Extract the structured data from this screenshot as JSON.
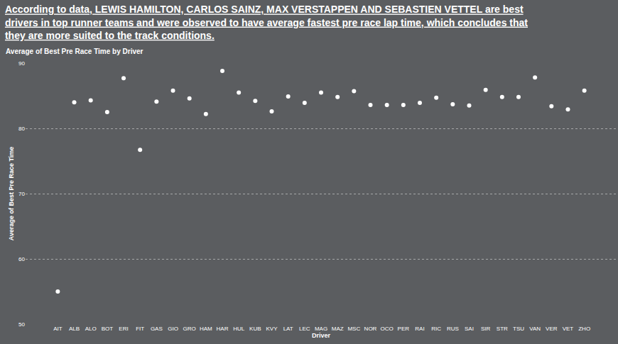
{
  "chart_data": {
    "type": "scatter",
    "title": "Average of Best Pre Race Time by Driver",
    "annotations": [
      "According to data, LEWIS HAMILTON, CARLOS SAINZ, MAX VERSTAPPEN AND SEBASTIEN VETTEL are best\ndrivers in top runner teams and were observed to have average fastest pre race lap time, which concludes that\nthey are more suited to the track conditions."
    ],
    "x_label": "Driver",
    "y_label": "Average of Best Pre Race Time",
    "categories": [
      "AIT",
      "ALB",
      "ALO",
      "BOT",
      "ERI",
      "FIT",
      "GAS",
      "GIO",
      "GRO",
      "HAM",
      "HAR",
      "HUL",
      "KUB",
      "KVY",
      "LAT",
      "LEC",
      "MAG",
      "MAZ",
      "MSC",
      "NOR",
      "OCO",
      "PER",
      "RAI",
      "RIC",
      "RUS",
      "SAI",
      "SIR",
      "STR",
      "TSU",
      "VAN",
      "VER",
      "VET",
      "ZHO"
    ],
    "values": [
      55.0,
      84.0,
      84.3,
      82.5,
      87.7,
      76.7,
      84.1,
      85.8,
      84.6,
      82.2,
      88.8,
      85.5,
      84.2,
      82.6,
      84.9,
      83.9,
      85.5,
      84.8,
      85.7,
      83.6,
      83.6,
      83.6,
      83.9,
      84.7,
      83.7,
      83.5,
      85.9,
      84.8,
      84.8,
      87.8,
      83.4,
      82.9,
      85.8
    ],
    "color": "#ffffff",
    "ylim": [
      50,
      90
    ],
    "yticks": [
      50,
      60,
      70,
      80,
      90
    ],
    "grid": true
  }
}
